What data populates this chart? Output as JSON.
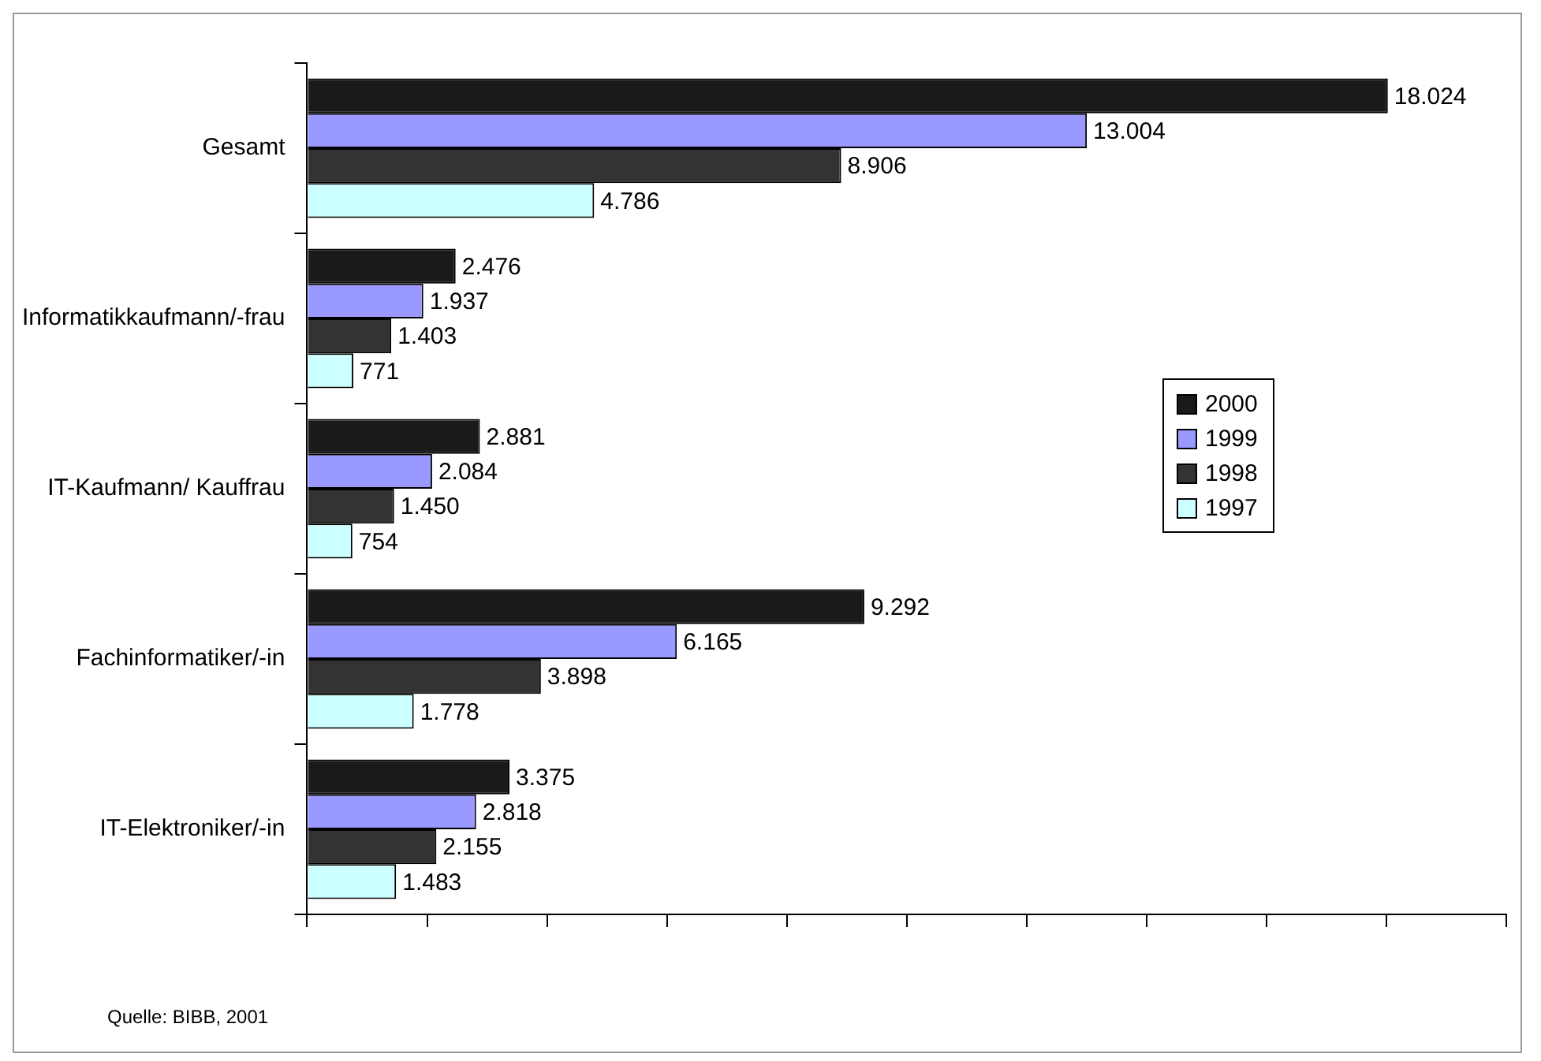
{
  "chart_data": {
    "type": "bar",
    "orientation": "horizontal",
    "categories": [
      "Gesamt",
      "Informatikkaufmann/-frau",
      "IT-Kaufmann/ Kauffrau",
      "Fachinformatiker/-in",
      "IT-Elektroniker/-in"
    ],
    "series": [
      {
        "name": "2000",
        "color": "#1a1a1a",
        "values": [
          18024,
          2476,
          2881,
          9292,
          3375
        ],
        "value_labels": [
          "18.024",
          "2.476",
          "2.881",
          "9.292",
          "3.375"
        ]
      },
      {
        "name": "1999",
        "color": "#9999ff",
        "values": [
          13004,
          1937,
          2084,
          6165,
          2818
        ],
        "value_labels": [
          "13.004",
          "1.937",
          "2.084",
          "6.165",
          "2.818"
        ]
      },
      {
        "name": "1998",
        "color": "#333333",
        "values": [
          8906,
          1403,
          1450,
          3898,
          2155
        ],
        "value_labels": [
          "8.906",
          "1.403",
          "1.450",
          "3.898",
          "2.155"
        ]
      },
      {
        "name": "1997",
        "color": "#ccffff",
        "values": [
          4786,
          771,
          754,
          1778,
          1483
        ],
        "value_labels": [
          "4.786",
          "771",
          "754",
          "1.778",
          "1.483"
        ]
      }
    ],
    "xlim": [
      0,
      20000
    ],
    "xticks": [
      {
        "value": 0,
        "label": null
      },
      {
        "value": 2000,
        "label": null
      },
      {
        "value": 4000,
        "label": null
      },
      {
        "value": 6000,
        "label": null
      },
      {
        "value": 8000,
        "label": null
      },
      {
        "value": 10000,
        "label": null
      },
      {
        "value": 12000,
        "label": null
      },
      {
        "value": 14000,
        "label": null
      },
      {
        "value": 16000,
        "label": null
      },
      {
        "value": 18000,
        "label": null
      },
      {
        "value": 20000,
        "label": null
      }
    ],
    "tick_labels": "y",
    "grid": false,
    "legend": "right",
    "annotations": [
      "Quelle: BIBB, 2001"
    ]
  }
}
